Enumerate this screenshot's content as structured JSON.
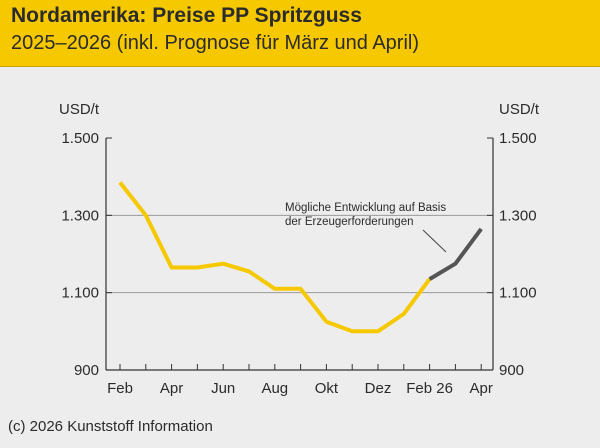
{
  "header": {
    "title": "Nordamerika: Preise PP Spritzguss",
    "subtitle": "2025–2026 (inkl. Prognose für März und April)"
  },
  "footer": {
    "credit": "(c) 2026 Kunststoff Information"
  },
  "colors": {
    "header_bg": "#f6c800",
    "actual_line": "#f6c800",
    "forecast_line": "#555555",
    "gridline": "#9a9a9a",
    "axis": "#333333"
  },
  "chart_data": {
    "type": "line",
    "ylabel_left": "USD/t",
    "ylabel_right": "USD/t",
    "ylim": [
      900,
      1500
    ],
    "yticks": [
      900,
      1100,
      1300,
      1500
    ],
    "ytick_labels": [
      "900",
      "1.100",
      "1.300",
      "1.500"
    ],
    "gridlines_at": [
      1100,
      1300
    ],
    "xtick_labels": [
      "Feb",
      "Apr",
      "Jun",
      "Aug",
      "Okt",
      "Dez",
      "Feb 26",
      "Apr"
    ],
    "xtick_positions": [
      0,
      2,
      4,
      6,
      8,
      10,
      12,
      14
    ],
    "x_count": 15,
    "series": [
      {
        "name": "Preise",
        "style": "actual",
        "x": [
          0,
          1,
          2,
          3,
          4,
          5,
          6,
          7,
          8,
          9,
          10,
          11,
          12
        ],
        "values": [
          1385,
          1300,
          1165,
          1165,
          1175,
          1155,
          1110,
          1110,
          1025,
          1000,
          1000,
          1045,
          1135
        ]
      },
      {
        "name": "Prognose",
        "style": "forecast",
        "x": [
          12,
          13,
          14
        ],
        "values": [
          1135,
          1175,
          1265
        ]
      }
    ],
    "annotation": {
      "lines": [
        "Mögliche Entwicklung auf Basis",
        "der Erzeugerforderungen"
      ]
    }
  }
}
